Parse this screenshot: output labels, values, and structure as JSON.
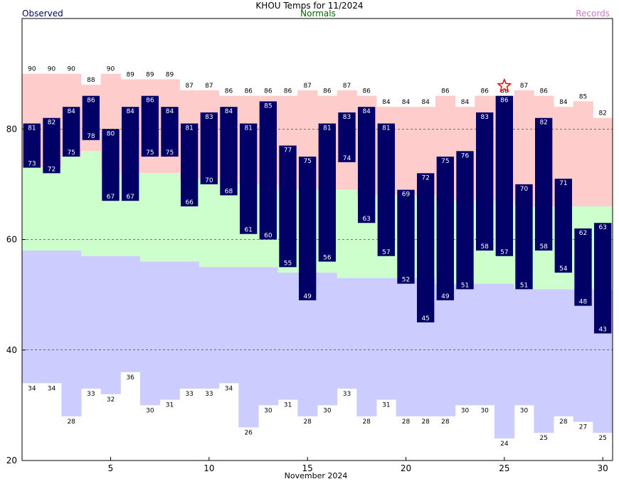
{
  "chart_data": {
    "type": "bar",
    "title": "KHOU Temps for 11/2024",
    "legend": {
      "observed": {
        "label": "Observed",
        "color": "#000066"
      },
      "normals": {
        "label": "Normals",
        "color": "#006600"
      },
      "records": {
        "label": "Records",
        "color": "#cc77cc"
      }
    },
    "xlabel": "November 2024",
    "x_ticks": [
      5,
      10,
      15,
      20,
      25,
      30
    ],
    "y_ticks": [
      20,
      40,
      60,
      80
    ],
    "ylim": [
      20,
      100
    ],
    "xlim": [
      0.5,
      30.5
    ],
    "gridlines_y": [
      40,
      60,
      80
    ],
    "colors": {
      "observed_bar": "#000066",
      "normal_band": "#ccffcc",
      "record_high_band": "#ffcccc",
      "record_low_band": "#ccccff",
      "record_marker": "#ee0000"
    },
    "days": [
      1,
      2,
      3,
      4,
      5,
      6,
      7,
      8,
      9,
      10,
      11,
      12,
      13,
      14,
      15,
      16,
      17,
      18,
      19,
      20,
      21,
      22,
      23,
      24,
      25,
      26,
      27,
      28,
      29,
      30
    ],
    "series": [
      {
        "name": "Observed High",
        "values": [
          81,
          82,
          84,
          86,
          80,
          84,
          86,
          84,
          81,
          83,
          84,
          81,
          85,
          77,
          75,
          81,
          83,
          84,
          81,
          69,
          72,
          75,
          76,
          83,
          86,
          70,
          82,
          71,
          62,
          63
        ]
      },
      {
        "name": "Observed Low",
        "values": [
          73,
          72,
          75,
          78,
          67,
          67,
          75,
          75,
          66,
          70,
          68,
          61,
          60,
          55,
          49,
          56,
          74,
          63,
          57,
          52,
          45,
          49,
          51,
          58,
          57,
          51,
          58,
          54,
          48,
          43
        ]
      },
      {
        "name": "Normal High",
        "values": [
          73,
          73,
          75,
          76,
          72,
          72,
          72,
          72,
          71,
          71,
          70,
          70,
          70,
          69,
          69,
          69,
          69,
          68,
          68,
          68,
          68,
          67,
          67,
          67,
          67,
          66,
          66,
          66,
          66,
          66
        ]
      },
      {
        "name": "Normal Low",
        "values": [
          58,
          58,
          58,
          57,
          57,
          57,
          56,
          56,
          56,
          55,
          55,
          55,
          55,
          54,
          54,
          54,
          53,
          53,
          53,
          53,
          53,
          52,
          52,
          52,
          52,
          51,
          51,
          51,
          51,
          51
        ]
      },
      {
        "name": "Record High",
        "values": [
          90,
          90,
          90,
          88,
          90,
          89,
          89,
          89,
          87,
          87,
          86,
          86,
          86,
          86,
          87,
          86,
          87,
          86,
          84,
          84,
          84,
          86,
          84,
          86,
          86,
          87,
          86,
          84,
          85,
          82
        ]
      },
      {
        "name": "Record Low",
        "values": [
          34,
          34,
          28,
          33,
          32,
          36,
          30,
          31,
          33,
          33,
          34,
          26,
          30,
          31,
          28,
          30,
          33,
          28,
          31,
          28,
          28,
          28,
          30,
          30,
          24,
          30,
          25,
          28,
          27,
          25
        ]
      }
    ],
    "record_set_days": [
      25
    ]
  }
}
